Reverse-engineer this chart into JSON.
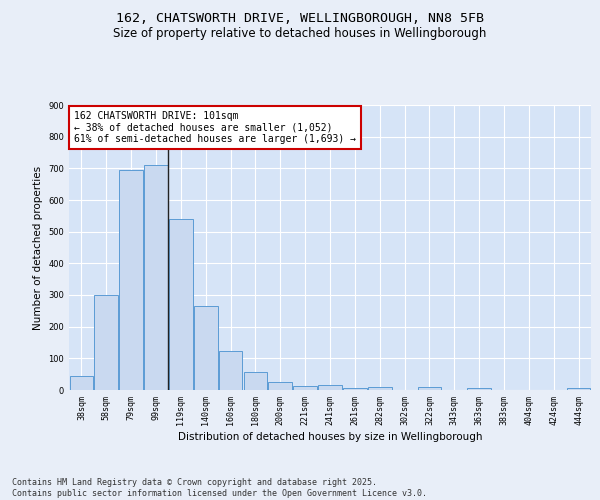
{
  "title": "162, CHATSWORTH DRIVE, WELLINGBOROUGH, NN8 5FB",
  "subtitle": "Size of property relative to detached houses in Wellingborough",
  "xlabel": "Distribution of detached houses by size in Wellingborough",
  "ylabel": "Number of detached properties",
  "categories": [
    "38sqm",
    "58sqm",
    "79sqm",
    "99sqm",
    "119sqm",
    "140sqm",
    "160sqm",
    "180sqm",
    "200sqm",
    "221sqm",
    "241sqm",
    "261sqm",
    "282sqm",
    "302sqm",
    "322sqm",
    "343sqm",
    "363sqm",
    "383sqm",
    "404sqm",
    "424sqm",
    "444sqm"
  ],
  "values": [
    45,
    300,
    695,
    710,
    540,
    265,
    122,
    57,
    25,
    14,
    17,
    5,
    8,
    0,
    9,
    0,
    5,
    0,
    0,
    0,
    7
  ],
  "bar_color": "#c9d9f0",
  "bar_edge_color": "#5b9bd5",
  "highlight_index": 3,
  "highlight_line_color": "#222222",
  "annotation_text": "162 CHATSWORTH DRIVE: 101sqm\n← 38% of detached houses are smaller (1,052)\n61% of semi-detached houses are larger (1,693) →",
  "annotation_box_color": "#ffffff",
  "annotation_box_edge": "#cc0000",
  "ylim": [
    0,
    900
  ],
  "yticks": [
    0,
    100,
    200,
    300,
    400,
    500,
    600,
    700,
    800,
    900
  ],
  "background_color": "#e8eef8",
  "plot_bg_color": "#d6e4f7",
  "grid_color": "#ffffff",
  "footer": "Contains HM Land Registry data © Crown copyright and database right 2025.\nContains public sector information licensed under the Open Government Licence v3.0.",
  "title_fontsize": 9.5,
  "subtitle_fontsize": 8.5,
  "axis_label_fontsize": 7.5,
  "tick_fontsize": 6,
  "annotation_fontsize": 7,
  "footer_fontsize": 6
}
